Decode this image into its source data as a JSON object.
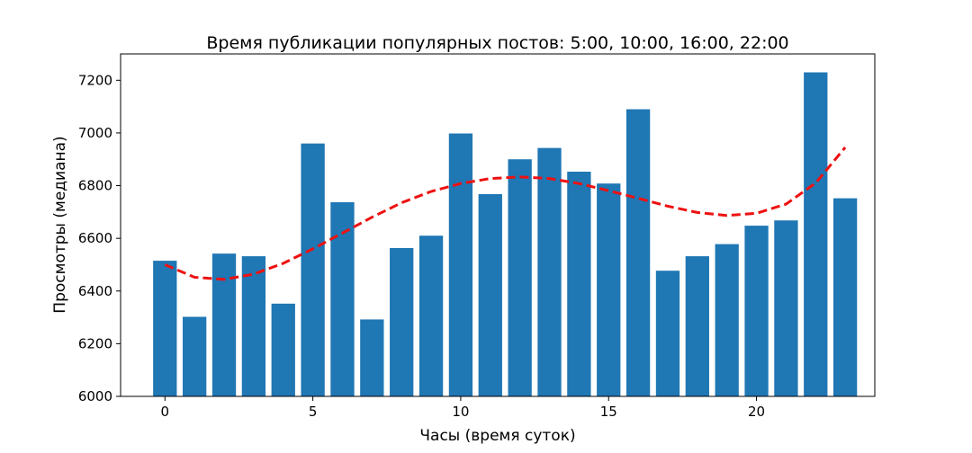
{
  "chart_data": {
    "type": "bar",
    "title": "Время публикации популярных постов: 5:00, 10:00, 16:00, 22:00",
    "xlabel": "Часы (время суток)",
    "ylabel": "Просмотры (медиана)",
    "x": [
      0,
      1,
      2,
      3,
      4,
      5,
      6,
      7,
      8,
      9,
      10,
      11,
      12,
      13,
      14,
      15,
      16,
      17,
      18,
      19,
      20,
      21,
      22,
      23
    ],
    "values": [
      6515,
      6302,
      6542,
      6532,
      6352,
      6960,
      6737,
      6292,
      6563,
      6610,
      6998,
      6768,
      6900,
      6943,
      6853,
      6808,
      7090,
      6477,
      6532,
      6578,
      6648,
      6668,
      7230,
      6752
    ],
    "trend": [
      6500,
      6452,
      6444,
      6464,
      6505,
      6560,
      6620,
      6680,
      6735,
      6778,
      6808,
      6827,
      6833,
      6827,
      6808,
      6781,
      6752,
      6722,
      6698,
      6687,
      6695,
      6730,
      6810,
      6945
    ],
    "xlim": [
      -1.5,
      24
    ],
    "ylim": [
      6000,
      7300
    ],
    "xticks": [
      0,
      5,
      10,
      15,
      20
    ],
    "yticks": [
      6000,
      6200,
      6400,
      6600,
      6800,
      7000,
      7200
    ],
    "grid": false,
    "colors": {
      "bar": "#1f77b4",
      "trend": "#ee1111"
    }
  }
}
